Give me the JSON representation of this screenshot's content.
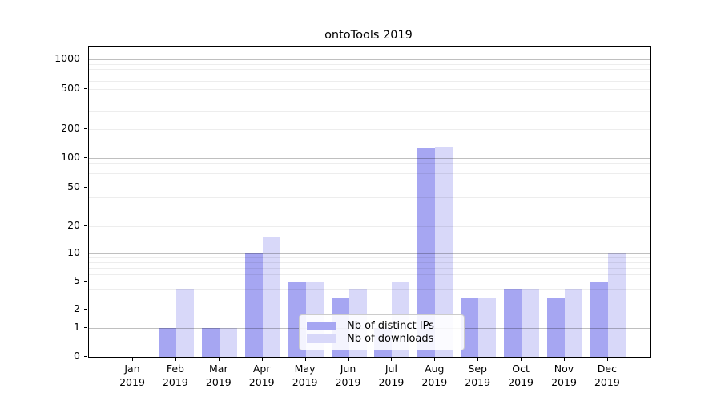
{
  "title": "ontoTools 2019",
  "colors": {
    "distinct_ips": "#a6a6f2",
    "downloads": "#d8d8f9",
    "grid_major": "rgba(0,0,0,0.25)",
    "grid_minor": "rgba(0,0,0,0.07)",
    "axis": "#000000",
    "background": "#ffffff"
  },
  "legend": {
    "items": [
      {
        "label": "Nb of distinct IPs",
        "color": "#a6a6f2",
        "series_key": "distinct_ips"
      },
      {
        "label": "Nb of downloads",
        "color": "#d8d8f9",
        "series_key": "downloads"
      }
    ]
  },
  "chart_data": {
    "type": "bar",
    "title": "ontoTools 2019",
    "categories": [
      "Jan 2019",
      "Feb 2019",
      "Mar 2019",
      "Apr 2019",
      "May 2019",
      "Jun 2019",
      "Jul 2019",
      "Aug 2019",
      "Sep 2019",
      "Oct 2019",
      "Nov 2019",
      "Dec 2019"
    ],
    "series": [
      {
        "name": "Nb of distinct IPs",
        "values": [
          0,
          1,
          1,
          10,
          5,
          3,
          1,
          125,
          3,
          4,
          3,
          5
        ]
      },
      {
        "name": "Nb of downloads",
        "values": [
          0,
          4,
          1,
          15,
          5,
          4,
          5,
          130,
          3,
          4,
          4,
          10
        ]
      }
    ],
    "xlabel": "",
    "ylabel": "",
    "yscale": "log-like (symlog with 0 baseline)",
    "yticks": [
      0,
      1,
      2,
      5,
      10,
      20,
      50,
      100,
      200,
      500,
      1000
    ],
    "ylim": [
      0,
      1360
    ],
    "grid": true,
    "legend_position": "inside lower-center-right"
  }
}
